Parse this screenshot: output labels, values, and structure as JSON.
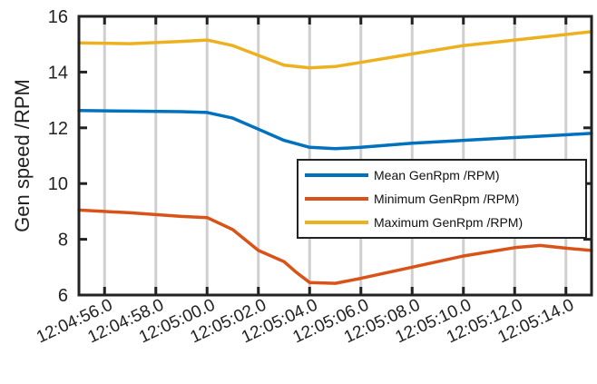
{
  "chart_data": {
    "type": "line",
    "title": "",
    "xlabel": "",
    "ylabel": "Gen speed /RPM",
    "ylim": [
      6,
      16
    ],
    "yticks": [
      6,
      8,
      10,
      12,
      14,
      16
    ],
    "xlim": [
      "12:04:55.0",
      "12:05:15.0"
    ],
    "xtick_labels": [
      "12:04:56.0",
      "12:04:58.0",
      "12:05:00.0",
      "12:05:02.0",
      "12:05:04.0",
      "12:05:06.0",
      "12:05:08.0",
      "12:05:10.0",
      "12:05:12.0",
      "12:05:14.0"
    ],
    "grid": "vertical",
    "legend_position": "center-right",
    "series": [
      {
        "name": "Mean GenRpm /RPM)",
        "color": "#0072BD",
        "x": [
          "12:04:55.0",
          "12:04:57.0",
          "12:04:59.0",
          "12:05:00.0",
          "12:05:01.0",
          "12:05:02.0",
          "12:05:03.0",
          "12:05:04.0",
          "12:05:05.0",
          "12:05:06.0",
          "12:05:08.0",
          "12:05:10.0",
          "12:05:12.0",
          "12:05:14.0",
          "12:05:15.0"
        ],
        "y": [
          12.62,
          12.6,
          12.58,
          12.55,
          12.35,
          11.95,
          11.55,
          11.3,
          11.25,
          11.3,
          11.45,
          11.55,
          11.65,
          11.75,
          11.8
        ]
      },
      {
        "name": "Minimum GenRpm /RPM)",
        "color": "#D95319",
        "x": [
          "12:04:55.0",
          "12:04:57.0",
          "12:04:59.0",
          "12:05:00.0",
          "12:05:01.0",
          "12:05:02.0",
          "12:05:03.0",
          "12:05:03.5",
          "12:05:04.0",
          "12:05:05.0",
          "12:05:06.0",
          "12:05:08.0",
          "12:05:10.0",
          "12:05:12.0",
          "12:05:13.0",
          "12:05:14.0",
          "12:05:15.0"
        ],
        "y": [
          9.05,
          8.95,
          8.82,
          8.78,
          8.35,
          7.6,
          7.2,
          6.8,
          6.45,
          6.42,
          6.6,
          7.0,
          7.4,
          7.7,
          7.78,
          7.68,
          7.6
        ]
      },
      {
        "name": "Maximum GenRpm /RPM)",
        "color": "#EDB120",
        "x": [
          "12:04:55.0",
          "12:04:57.0",
          "12:04:59.0",
          "12:05:00.0",
          "12:05:01.0",
          "12:05:02.0",
          "12:05:03.0",
          "12:05:04.0",
          "12:05:05.0",
          "12:05:06.0",
          "12:05:08.0",
          "12:05:10.0",
          "12:05:12.0",
          "12:05:14.0",
          "12:05:15.0"
        ],
        "y": [
          15.05,
          15.02,
          15.1,
          15.15,
          14.95,
          14.6,
          14.25,
          14.15,
          14.2,
          14.35,
          14.65,
          14.95,
          15.15,
          15.35,
          15.45
        ]
      }
    ]
  }
}
